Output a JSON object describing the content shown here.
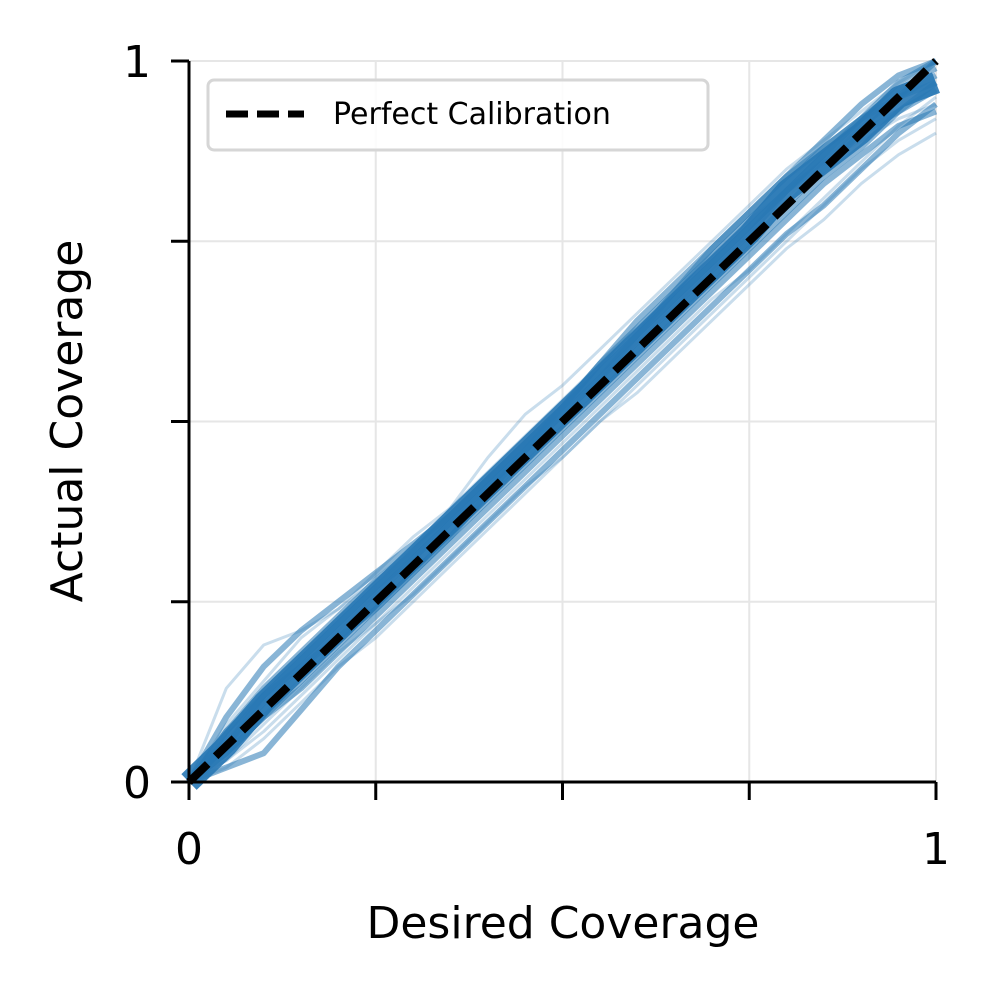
{
  "chart_data": {
    "type": "line",
    "title": "",
    "xlabel": "Desired Coverage",
    "ylabel": "Actual Coverage",
    "xlim": [
      0,
      1
    ],
    "ylim": [
      0,
      1
    ],
    "x_ticks": [
      0,
      0.25,
      0.5,
      0.75,
      1
    ],
    "y_ticks": [
      0,
      0.25,
      0.5,
      0.75,
      1
    ],
    "x_tick_labels": [
      "0",
      "",
      "",
      "",
      "1"
    ],
    "y_tick_labels": [
      "0",
      "",
      "",
      "",
      "1"
    ],
    "grid": true,
    "legend_position": "top-left",
    "legend": [
      "Perfect Calibration"
    ],
    "colors": {
      "curves": "#2878b5",
      "reference": "#000000"
    },
    "reference_line": {
      "name": "Perfect Calibration",
      "x": [
        0,
        1
      ],
      "y": [
        0,
        1
      ],
      "style": "dashed"
    },
    "x": [
      0,
      0.05,
      0.1,
      0.15,
      0.2,
      0.25,
      0.3,
      0.35,
      0.4,
      0.45,
      0.5,
      0.55,
      0.6,
      0.65,
      0.7,
      0.75,
      0.8,
      0.85,
      0.9,
      0.95,
      1
    ],
    "series": [
      {
        "values": [
          0,
          0.13,
          0.19,
          0.21,
          0.24,
          0.28,
          0.32,
          0.38,
          0.45,
          0.51,
          0.55,
          0.6,
          0.65,
          0.7,
          0.75,
          0.8,
          0.85,
          0.89,
          0.93,
          0.97,
          1.0
        ]
      },
      {
        "values": [
          0,
          0.09,
          0.16,
          0.21,
          0.25,
          0.29,
          0.33,
          0.37,
          0.42,
          0.47,
          0.52,
          0.57,
          0.62,
          0.67,
          0.72,
          0.77,
          0.82,
          0.86,
          0.9,
          0.93,
          0.96
        ]
      },
      {
        "values": [
          0,
          0.07,
          0.13,
          0.18,
          0.23,
          0.28,
          0.32,
          0.37,
          0.42,
          0.47,
          0.52,
          0.57,
          0.62,
          0.67,
          0.72,
          0.77,
          0.82,
          0.87,
          0.91,
          0.95,
          0.98
        ]
      },
      {
        "values": [
          0,
          0.06,
          0.11,
          0.16,
          0.21,
          0.26,
          0.31,
          0.36,
          0.41,
          0.46,
          0.51,
          0.56,
          0.61,
          0.66,
          0.71,
          0.76,
          0.81,
          0.86,
          0.91,
          0.95,
          1.0
        ]
      },
      {
        "values": [
          0,
          0.05,
          0.1,
          0.15,
          0.2,
          0.25,
          0.3,
          0.35,
          0.4,
          0.45,
          0.5,
          0.55,
          0.6,
          0.65,
          0.7,
          0.75,
          0.8,
          0.85,
          0.9,
          0.95,
          1.0
        ]
      },
      {
        "values": [
          0,
          0.04,
          0.09,
          0.14,
          0.19,
          0.24,
          0.29,
          0.34,
          0.39,
          0.44,
          0.49,
          0.54,
          0.59,
          0.64,
          0.69,
          0.74,
          0.79,
          0.84,
          0.88,
          0.93,
          0.97
        ]
      },
      {
        "values": [
          0,
          0.03,
          0.08,
          0.13,
          0.18,
          0.22,
          0.27,
          0.32,
          0.37,
          0.42,
          0.47,
          0.52,
          0.57,
          0.62,
          0.67,
          0.71,
          0.76,
          0.81,
          0.86,
          0.91,
          0.95
        ]
      },
      {
        "values": [
          0,
          0.02,
          0.04,
          0.1,
          0.16,
          0.21,
          0.26,
          0.31,
          0.36,
          0.41,
          0.46,
          0.51,
          0.56,
          0.61,
          0.66,
          0.71,
          0.76,
          0.8,
          0.85,
          0.9,
          0.94
        ]
      },
      {
        "values": [
          0,
          0.05,
          0.12,
          0.17,
          0.22,
          0.27,
          0.31,
          0.36,
          0.41,
          0.46,
          0.51,
          0.56,
          0.62,
          0.68,
          0.74,
          0.79,
          0.84,
          0.89,
          0.94,
          0.98,
          1.0
        ]
      },
      {
        "values": [
          0,
          0.08,
          0.14,
          0.2,
          0.24,
          0.29,
          0.34,
          0.38,
          0.43,
          0.48,
          0.53,
          0.58,
          0.63,
          0.68,
          0.73,
          0.78,
          0.82,
          0.86,
          0.89,
          0.92,
          0.94
        ]
      },
      {
        "values": [
          0,
          0.04,
          0.09,
          0.13,
          0.18,
          0.23,
          0.28,
          0.33,
          0.38,
          0.43,
          0.48,
          0.53,
          0.58,
          0.63,
          0.68,
          0.73,
          0.78,
          0.83,
          0.87,
          0.91,
          0.93
        ]
      },
      {
        "values": [
          0,
          0.06,
          0.12,
          0.17,
          0.22,
          0.27,
          0.32,
          0.37,
          0.42,
          0.47,
          0.52,
          0.58,
          0.63,
          0.68,
          0.73,
          0.78,
          0.83,
          0.88,
          0.92,
          0.96,
          0.99
        ]
      },
      {
        "values": [
          0,
          0.03,
          0.07,
          0.12,
          0.17,
          0.22,
          0.26,
          0.31,
          0.36,
          0.41,
          0.45,
          0.5,
          0.55,
          0.6,
          0.65,
          0.7,
          0.75,
          0.8,
          0.85,
          0.89,
          0.92
        ]
      },
      {
        "values": [
          0,
          0.07,
          0.12,
          0.16,
          0.2,
          0.24,
          0.29,
          0.34,
          0.4,
          0.46,
          0.52,
          0.58,
          0.64,
          0.69,
          0.74,
          0.79,
          0.84,
          0.88,
          0.92,
          0.95,
          0.97
        ]
      },
      {
        "values": [
          0,
          0.05,
          0.11,
          0.16,
          0.21,
          0.26,
          0.31,
          0.36,
          0.41,
          0.46,
          0.51,
          0.56,
          0.61,
          0.66,
          0.71,
          0.76,
          0.82,
          0.87,
          0.92,
          0.97,
          1.0
        ]
      },
      {
        "values": [
          0,
          0.02,
          0.06,
          0.11,
          0.16,
          0.2,
          0.25,
          0.3,
          0.35,
          0.4,
          0.45,
          0.5,
          0.54,
          0.59,
          0.64,
          0.69,
          0.74,
          0.78,
          0.83,
          0.87,
          0.9
        ]
      }
    ]
  }
}
